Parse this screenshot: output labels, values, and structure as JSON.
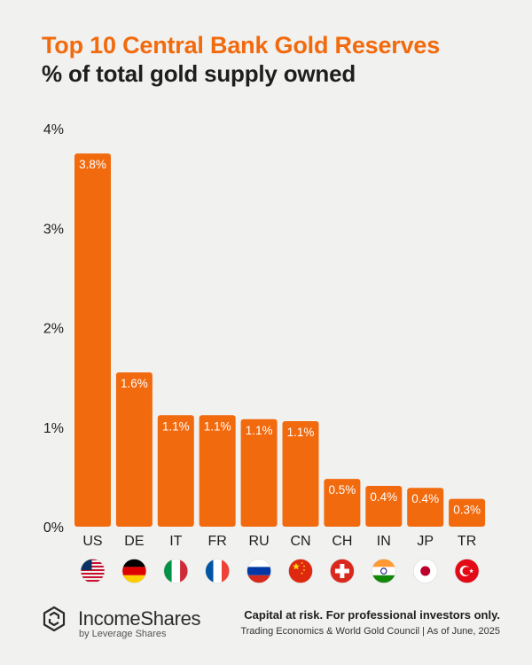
{
  "header": {
    "title": "Top 10 Central Bank Gold Reserves",
    "subtitle": "% of total gold supply owned"
  },
  "colors": {
    "bar": "#f26a0e",
    "title": "#f26a0e",
    "text": "#1e1e1e",
    "background": "#f1f1ef"
  },
  "chart_data": {
    "type": "bar",
    "title": "",
    "xlabel": "",
    "ylabel": "",
    "categories": [
      "US",
      "DE",
      "IT",
      "FR",
      "RU",
      "CN",
      "CH",
      "IN",
      "JP",
      "TR"
    ],
    "values": [
      3.75,
      1.55,
      1.12,
      1.12,
      1.08,
      1.06,
      0.48,
      0.41,
      0.39,
      0.28
    ],
    "data_labels": [
      "3.8%",
      "1.6%",
      "1.1%",
      "1.1%",
      "1.1%",
      "1.1%",
      "0.5%",
      "0.4%",
      "0.4%",
      "0.3%"
    ],
    "yticks": [
      0,
      1,
      2,
      3,
      4
    ],
    "ytick_labels": [
      "0%",
      "1%",
      "2%",
      "3%",
      "4%"
    ],
    "ylim": [
      0,
      4
    ],
    "grid": false,
    "flag_icons": [
      "us-flag-icon",
      "de-flag-icon",
      "it-flag-icon",
      "fr-flag-icon",
      "ru-flag-icon",
      "cn-flag-icon",
      "ch-flag-icon",
      "in-flag-icon",
      "jp-flag-icon",
      "tr-flag-icon"
    ]
  },
  "footer": {
    "brand": "IncomeShares",
    "brand_sub": "by Leverage Shares",
    "disclaimer": "Capital at risk. For professional investors only.",
    "source": "Trading Economics & World Gold Council | As of June, 2025",
    "logo_icon": "incomeshares-logo-icon"
  }
}
